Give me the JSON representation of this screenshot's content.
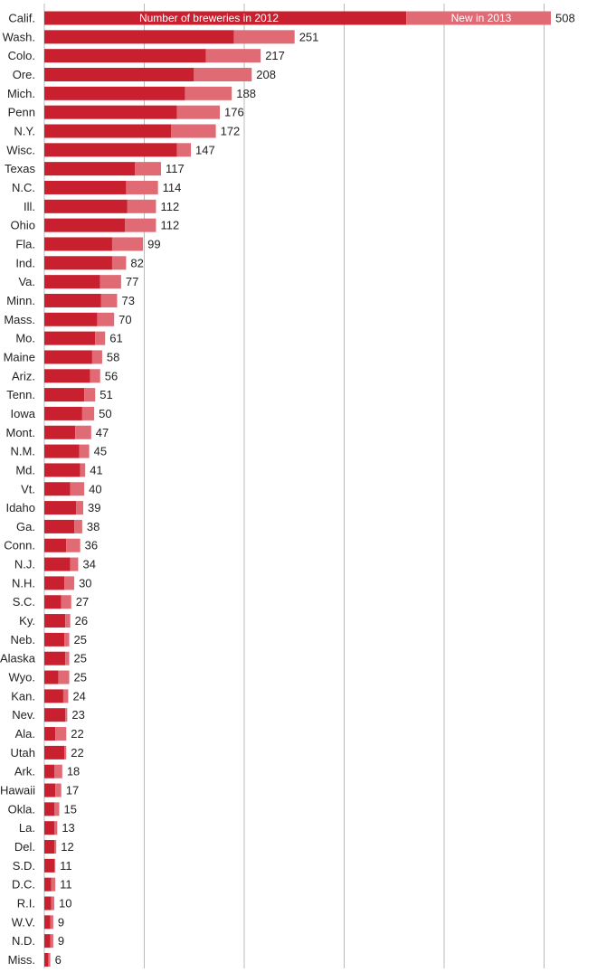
{
  "chart_data": {
    "type": "bar",
    "orientation": "horizontal",
    "stacked": true,
    "title": "",
    "xlabel": "",
    "ylabel": "",
    "xlim": [
      0,
      508
    ],
    "grid": true,
    "legend_placement": "inside top bar",
    "colors": {
      "base": "#c8202f",
      "new": "#e06b74",
      "grid": "#bbbbbb",
      "text": "#222222"
    },
    "categories": [
      "Calif.",
      "Wash.",
      "Colo.",
      "Ore.",
      "Mich.",
      "Penn",
      "N.Y.",
      "Wisc.",
      "Texas",
      "N.C.",
      "Ill.",
      "Ohio",
      "Fla.",
      "Ind.",
      "Va.",
      "Minn.",
      "Mass.",
      "Mo.",
      "Maine",
      "Ariz.",
      "Tenn.",
      "Iowa",
      "Mont.",
      "N.M.",
      "Md.",
      "Vt.",
      "Idaho",
      "Ga.",
      "Conn.",
      "N.J.",
      "N.H.",
      "S.C.",
      "Ky.",
      "Neb.",
      "Alaska",
      "Wyo.",
      "Kan.",
      "Nev.",
      "Ala.",
      "Utah",
      "Ark.",
      "Hawaii",
      "Okla.",
      "La.",
      "Del.",
      "S.D.",
      "D.C.",
      "R.I.",
      "W.V.",
      "N.D.",
      "Miss."
    ],
    "series": [
      {
        "name": "Number of breweries in 2012",
        "values": [
          363,
          190,
          162,
          150,
          141,
          133,
          127,
          133,
          91,
          82,
          83,
          81,
          68,
          68,
          56,
          57,
          53,
          51,
          48,
          46,
          40,
          38,
          31,
          35,
          36,
          26,
          32,
          30,
          22,
          26,
          20,
          17,
          21,
          20,
          21,
          14,
          19,
          21,
          11,
          20,
          10,
          11,
          10,
          10,
          10,
          10,
          7,
          7,
          6,
          6,
          4
        ]
      },
      {
        "name": "New in 2013",
        "values": [
          145,
          61,
          55,
          58,
          47,
          43,
          45,
          14,
          26,
          32,
          29,
          31,
          31,
          14,
          21,
          16,
          17,
          10,
          10,
          10,
          11,
          12,
          16,
          10,
          5,
          14,
          7,
          8,
          14,
          8,
          10,
          10,
          5,
          5,
          4,
          11,
          5,
          2,
          11,
          2,
          8,
          6,
          5,
          3,
          2,
          1,
          4,
          3,
          3,
          3,
          2
        ]
      }
    ],
    "totals": [
      508,
      251,
      217,
      208,
      188,
      176,
      172,
      147,
      117,
      114,
      112,
      112,
      99,
      82,
      77,
      73,
      70,
      61,
      58,
      56,
      51,
      50,
      47,
      45,
      41,
      40,
      39,
      38,
      36,
      34,
      30,
      27,
      26,
      25,
      25,
      25,
      24,
      23,
      22,
      22,
      18,
      17,
      15,
      13,
      12,
      11,
      11,
      10,
      9,
      9,
      6
    ]
  }
}
